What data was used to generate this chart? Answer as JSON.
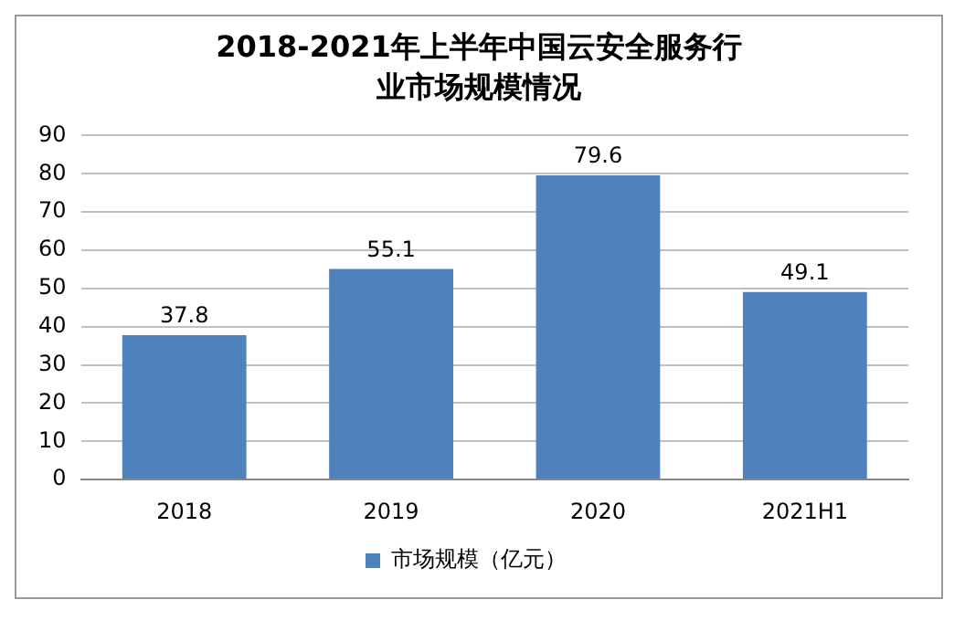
{
  "chart_data": {
    "type": "bar",
    "title": "2018-2021年上半年中国云安全服务行业市场规模情况",
    "categories": [
      "2018",
      "2019",
      "2020",
      "2021H1"
    ],
    "series": [
      {
        "name": "市场规模（亿元）",
        "color": "#4f81bd",
        "values": [
          37.8,
          55.1,
          79.6,
          49.1
        ]
      }
    ],
    "ylim": [
      0,
      90
    ],
    "yticks": [
      0,
      10,
      20,
      30,
      40,
      50,
      60,
      70,
      80,
      90
    ],
    "grid": "y",
    "legend": "bottom",
    "data_labels": true
  }
}
